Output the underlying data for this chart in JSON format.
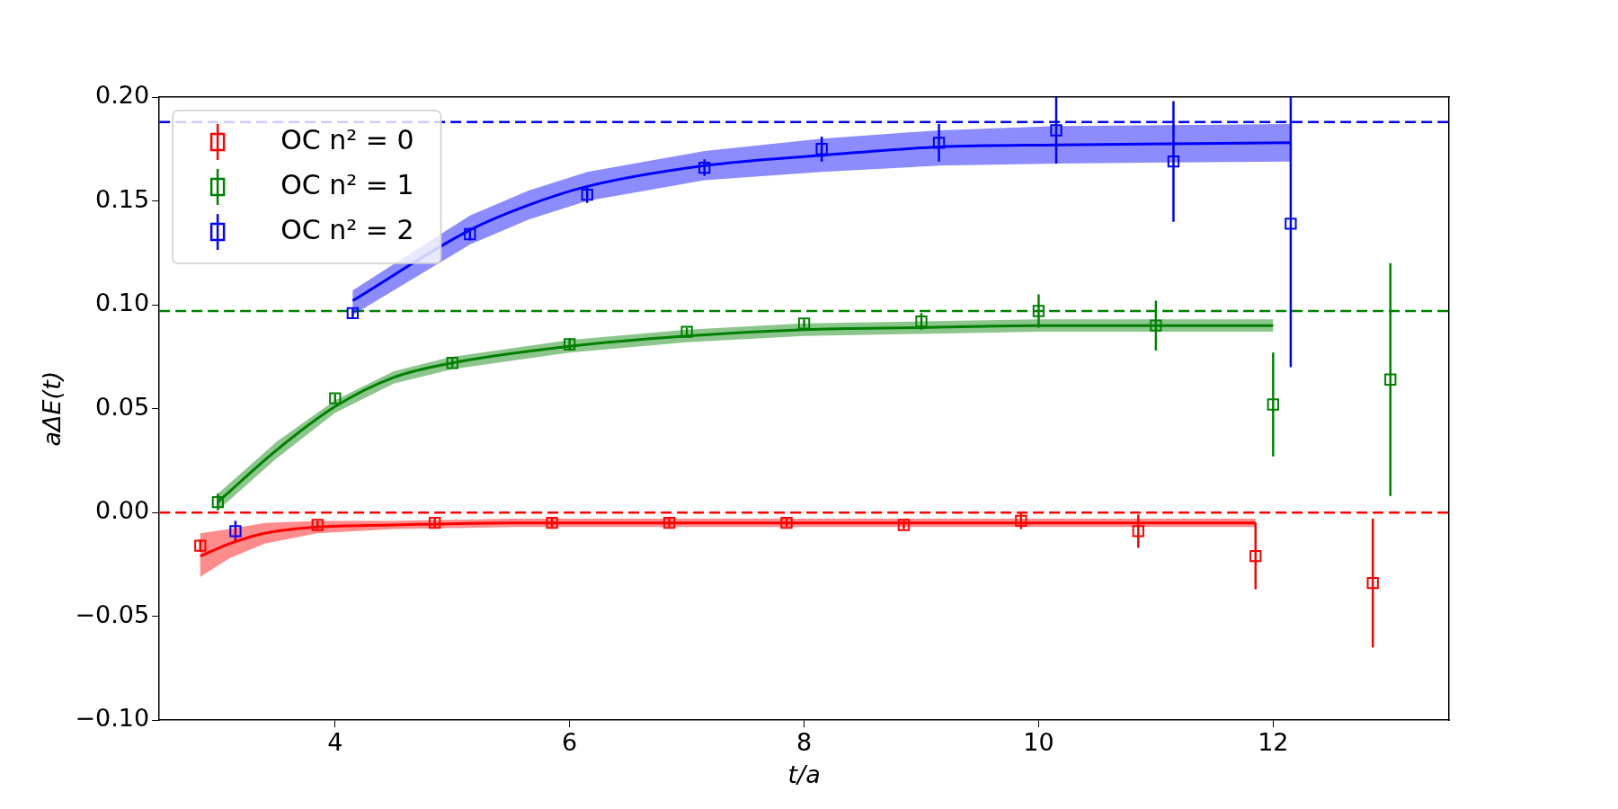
{
  "chart_data": {
    "type": "scatter",
    "xlabel": "t/a",
    "ylabel": "aΔE(t)",
    "xlim": [
      2.5,
      13.5
    ],
    "xticks": [
      4,
      6,
      8,
      10,
      12
    ],
    "ylim": [
      -0.1,
      0.2
    ],
    "yticks": [
      {
        "value": -0.1,
        "label": "−0.10"
      },
      {
        "value": -0.05,
        "label": "−0.05"
      },
      {
        "value": 0,
        "label": "0.00"
      },
      {
        "value": 0.05,
        "label": "0.05"
      },
      {
        "value": 0.1,
        "label": "0.10"
      },
      {
        "value": 0.15,
        "label": "0.15"
      },
      {
        "value": 0.2,
        "label": "0.20"
      }
    ],
    "grid": false,
    "legend": "top left",
    "marker": "square",
    "series": [
      {
        "name": "OC n² = 0",
        "type": "scatter",
        "color": "#ff0000",
        "x": [
          2.85,
          3.85,
          4.85,
          5.85,
          6.85,
          7.85,
          8.85,
          9.85,
          10.85,
          11.85,
          12.85
        ],
        "values": [
          -0.016,
          -0.006,
          -0.005,
          -0.005,
          -0.005,
          -0.005,
          -0.006,
          -0.004,
          -0.009,
          -0.021,
          -0.034
        ],
        "errors": [
          0.003,
          0.002,
          0.002,
          0.002,
          0.002,
          0.002,
          0.002,
          0.004,
          0.008,
          0.016,
          0.031
        ]
      },
      {
        "name": "OC n² = 1",
        "type": "scatter",
        "color": "#008000",
        "x": [
          3,
          4,
          5,
          6,
          7,
          8,
          9,
          10,
          11,
          12,
          13
        ],
        "values": [
          0.005,
          0.055,
          0.072,
          0.081,
          0.087,
          0.091,
          0.092,
          0.097,
          0.09,
          0.052,
          0.064
        ],
        "errors": [
          0.004,
          0.002,
          0.002,
          0.003,
          0.002,
          0.002,
          0.004,
          0.008,
          0.012,
          0.025,
          0.056
        ]
      },
      {
        "name": "OC n² = 2",
        "type": "scatter",
        "color": "#0000ff",
        "x": [
          3.15,
          4.15,
          5.15,
          6.15,
          7.15,
          8.15,
          9.15,
          10.15,
          11.15,
          12.15
        ],
        "values": [
          -0.009,
          0.096,
          0.134,
          0.153,
          0.166,
          0.175,
          0.178,
          0.184,
          0.169,
          0.139
        ],
        "errors": [
          0.005,
          0.002,
          0.003,
          0.004,
          0.004,
          0.006,
          0.009,
          0.016,
          0.029,
          0.069
        ]
      },
      {
        "type": "line",
        "marker": "none",
        "color": "#ff0000",
        "x": [
          2.85,
          3.1,
          3.4,
          3.85,
          4.5,
          5.5,
          7,
          9,
          11.85
        ],
        "values": [
          -0.021,
          -0.015,
          -0.01,
          -0.007,
          -0.006,
          -0.005,
          -0.005,
          -0.005,
          -0.005
        ],
        "lower": [
          -0.031,
          -0.022,
          -0.015,
          -0.01,
          -0.008,
          -0.007,
          -0.007,
          -0.007,
          -0.007
        ],
        "upper": [
          -0.01,
          -0.008,
          -0.005,
          -0.004,
          -0.004,
          -0.003,
          -0.003,
          -0.003,
          -0.003
        ]
      },
      {
        "type": "line",
        "marker": "none",
        "color": "#008000",
        "x": [
          3,
          3.5,
          4,
          4.5,
          5,
          6,
          7,
          8,
          9,
          10,
          12
        ],
        "values": [
          0.005,
          0.03,
          0.051,
          0.065,
          0.072,
          0.08,
          0.085,
          0.088,
          0.089,
          0.09,
          0.09
        ],
        "lower": [
          0.001,
          0.026,
          0.048,
          0.062,
          0.069,
          0.077,
          0.082,
          0.085,
          0.086,
          0.087,
          0.087
        ],
        "upper": [
          0.009,
          0.034,
          0.054,
          0.068,
          0.075,
          0.083,
          0.088,
          0.091,
          0.092,
          0.093,
          0.093
        ]
      },
      {
        "type": "line",
        "marker": "none",
        "color": "#0000ff",
        "x": [
          4.15,
          5.15,
          5.65,
          6.15,
          7.15,
          8.15,
          9.15,
          10.15,
          12.15
        ],
        "values": [
          0.102,
          0.136,
          0.148,
          0.157,
          0.167,
          0.172,
          0.176,
          0.177,
          0.178
        ],
        "lower": [
          0.095,
          0.129,
          0.141,
          0.15,
          0.16,
          0.164,
          0.167,
          0.168,
          0.169
        ],
        "upper": [
          0.107,
          0.143,
          0.155,
          0.164,
          0.174,
          0.18,
          0.184,
          0.186,
          0.187
        ]
      }
    ],
    "ref_lines": [
      {
        "axis": "y",
        "value": 0,
        "color": "#ff0000",
        "line_style": "dashed"
      },
      {
        "axis": "y",
        "value": 0.097,
        "color": "#008000",
        "line_style": "dashed"
      },
      {
        "axis": "y",
        "value": 0.188,
        "color": "#0000ff",
        "line_style": "dashed"
      }
    ]
  }
}
